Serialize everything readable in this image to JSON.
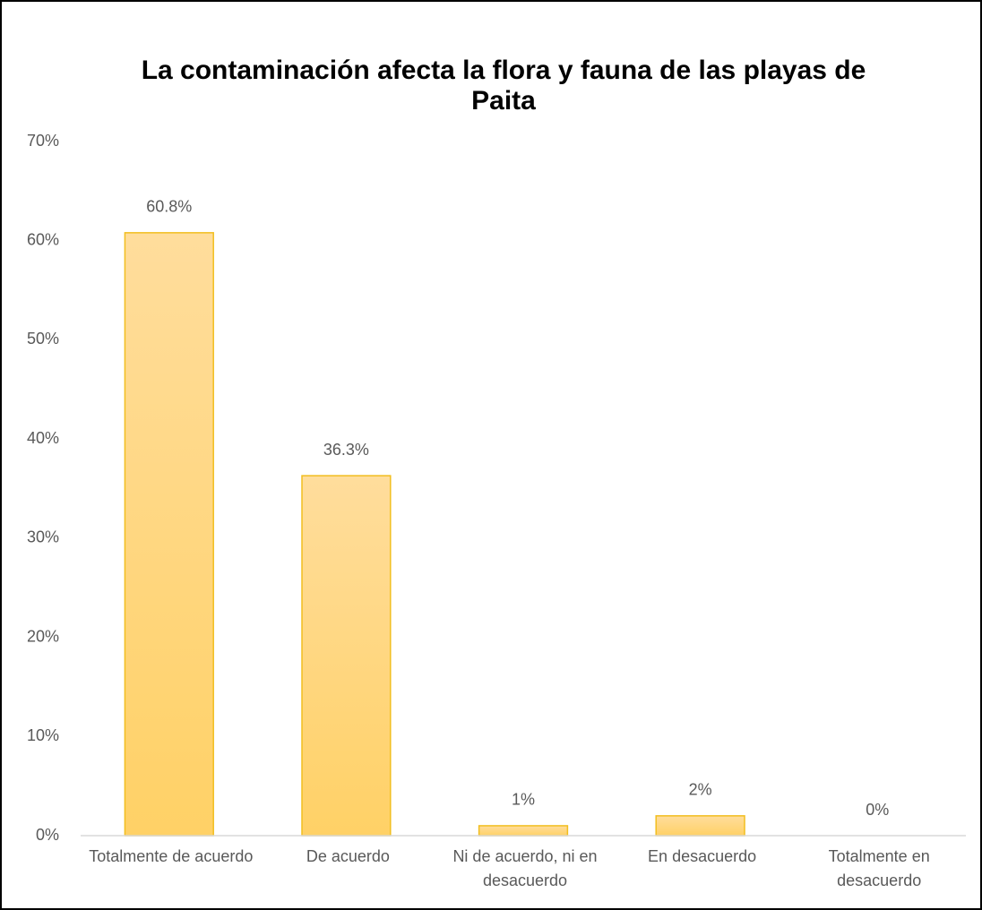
{
  "chart_data": {
    "type": "bar",
    "title": "La contaminación afecta la flora y fauna de las playas de Paita",
    "categories": [
      "Totalmente de acuerdo",
      "De acuerdo",
      "Ni de acuerdo, ni en desacuerdo",
      "En desacuerdo",
      "Totalmente en desacuerdo"
    ],
    "values": [
      60.8,
      36.3,
      1,
      2,
      0
    ],
    "value_labels": [
      "60.8%",
      "36.3%",
      "1%",
      "2%",
      "0%"
    ],
    "color": "#ffd47a",
    "ylim": [
      0,
      70
    ],
    "yticks": [
      {
        "value": 0,
        "label": "0%"
      },
      {
        "value": 10,
        "label": "10%"
      },
      {
        "value": 20,
        "label": "20%"
      },
      {
        "value": 30,
        "label": "30%"
      },
      {
        "value": 40,
        "label": "40%"
      },
      {
        "value": 50,
        "label": "50%"
      },
      {
        "value": 60,
        "label": "60%"
      },
      {
        "value": 70,
        "label": "70%"
      }
    ],
    "grid": false
  }
}
